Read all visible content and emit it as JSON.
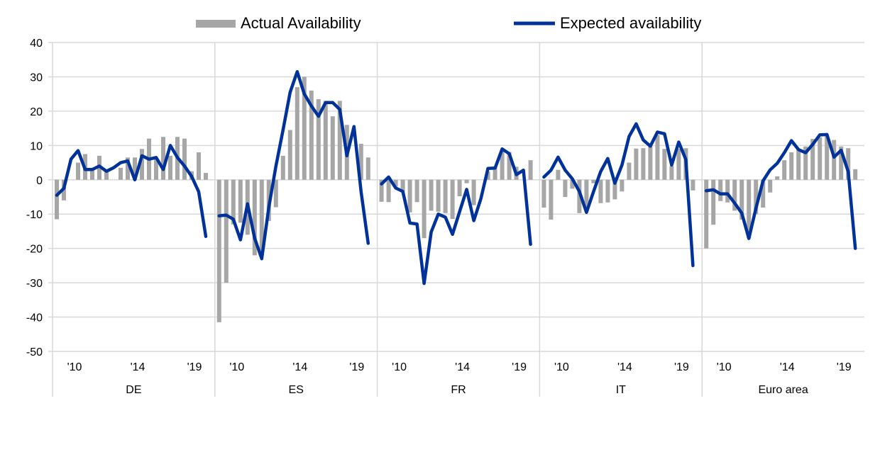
{
  "chart_data": {
    "type": "bar",
    "title": "",
    "xlabel": "",
    "ylabel": "",
    "ylim": [
      -50,
      40
    ],
    "yticks": [
      "40",
      "30",
      "20",
      "10",
      "0",
      "-10",
      "-20",
      "-30",
      "-40",
      "-50"
    ],
    "ytick_values": [
      40,
      30,
      20,
      10,
      0,
      -10,
      -20,
      -30,
      -40,
      -50
    ],
    "grid": true,
    "legend_position": "top",
    "legend": [
      {
        "name": "Actual Availability",
        "kind": "bar",
        "color": "#a6a6a6"
      },
      {
        "name": "Expected availability",
        "kind": "line",
        "color": "#003299"
      }
    ],
    "xtick_labels": [
      "'10",
      "'14",
      "'19"
    ],
    "panels": [
      {
        "name": "DE",
        "actual": [
          -11.5,
          -6,
          0,
          5,
          7.5,
          3,
          7,
          3,
          0,
          3.5,
          6.5,
          6.5,
          9,
          12,
          6,
          12.5,
          7,
          12.5,
          12,
          2.5,
          8,
          2
        ],
        "expected": [
          -4.5,
          -2.5,
          6,
          8.5,
          3,
          3,
          4,
          2.5,
          3.5,
          5,
          5.5,
          0,
          7,
          6,
          6.5,
          3,
          10,
          6.5,
          4,
          1,
          -3.5,
          -16.5
        ]
      },
      {
        "name": "ES",
        "actual": [
          -41.5,
          -30,
          -13,
          -12.5,
          -16,
          -22,
          -22,
          -12,
          -8,
          7,
          14.5,
          27,
          30,
          26,
          23.5,
          23,
          18.5,
          23,
          16,
          0,
          10.5,
          6.5
        ],
        "expected": [
          -10.5,
          -10.3,
          -11.5,
          -17.5,
          -7,
          -17,
          -23,
          -8,
          4,
          14.5,
          25.5,
          31.5,
          25,
          21.5,
          18.5,
          22.5,
          22.5,
          20.5,
          7,
          15.5,
          -3.5,
          -18.5
        ]
      },
      {
        "name": "FR",
        "actual": [
          -6.4,
          -6.5,
          -2,
          -3.5,
          -9.5,
          -6.5,
          -17,
          -9,
          -9.3,
          -9.7,
          -11.4,
          -4.8,
          -1,
          -7.4,
          0,
          2.4,
          3.4,
          8.3,
          8.1,
          3.8,
          0,
          5.7
        ],
        "expected": [
          -1.2,
          0.8,
          -2.4,
          -3.4,
          -12.6,
          -12.9,
          -30.2,
          -15.2,
          -10,
          -10.9,
          -15.9,
          -9.3,
          -2.8,
          -11.9,
          -5.5,
          3.3,
          3.4,
          9,
          7.6,
          1.5,
          2.8,
          -18.8
        ]
      },
      {
        "name": "IT",
        "actual": [
          -8.1,
          -11.6,
          2.9,
          -5,
          -2.6,
          -9.7,
          -9,
          -1,
          -6.8,
          -6.6,
          -5.7,
          -3.4,
          5,
          9.1,
          9.2,
          9.7,
          13.1,
          9,
          4,
          9,
          9.2,
          -3.1
        ],
        "expected": [
          0.8,
          2.8,
          6.6,
          2.8,
          0.3,
          -3.4,
          -9.5,
          -3.4,
          2.4,
          6.2,
          -1,
          4.3,
          12.6,
          16.3,
          11.6,
          9.8,
          13.9,
          13.4,
          4.3,
          11,
          5.9,
          -25
        ]
      },
      {
        "name": "Euro area",
        "actual": [
          -20,
          -13.1,
          -6.2,
          -6.6,
          -9,
          -11.6,
          -17,
          -10,
          -8.1,
          -3.7,
          1,
          5.7,
          8,
          9,
          9.7,
          11.9,
          12.4,
          13.1,
          11.6,
          9.7,
          9.2,
          3.1
        ],
        "expected": [
          -3.2,
          -2.9,
          -4.1,
          -4.1,
          -6.8,
          -9.7,
          -17.1,
          -8.3,
          -0.3,
          2.9,
          4.8,
          7.9,
          11.4,
          8.8,
          7.9,
          10.3,
          13.1,
          13.2,
          6.6,
          8.6,
          2.4,
          -20
        ]
      }
    ]
  }
}
